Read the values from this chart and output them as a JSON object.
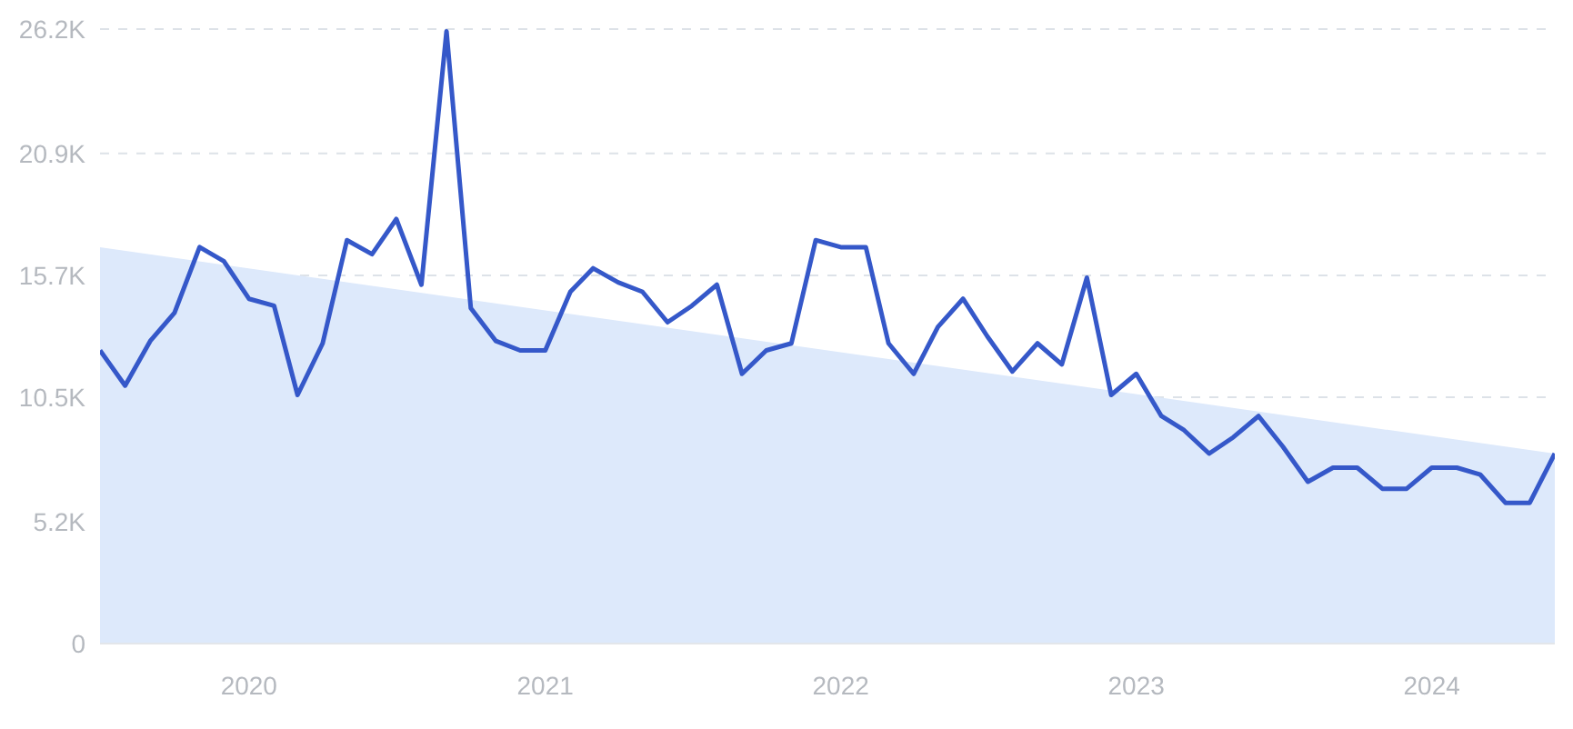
{
  "chart_data": {
    "type": "line",
    "xlim": [
      "2019-07",
      "2024-06"
    ],
    "xticks": [
      "2020",
      "2021",
      "2022",
      "2023",
      "2024"
    ],
    "ylim": [
      0,
      26200
    ],
    "yticks": [
      {
        "value": 0,
        "label": "0"
      },
      {
        "value": 5200,
        "label": "5.2K"
      },
      {
        "value": 10500,
        "label": "10.5K"
      },
      {
        "value": 15700,
        "label": "15.7K"
      },
      {
        "value": 20900,
        "label": "20.9K"
      },
      {
        "value": 26200,
        "label": "26.2K"
      }
    ],
    "grid": "y",
    "line_style": "solid",
    "marker": "none",
    "series": [
      {
        "type": "area",
        "color": "#dde9fb",
        "x": [
          "2019-07",
          "2024-06"
        ],
        "values": [
          16900,
          8100
        ]
      },
      {
        "color": "#3558c9",
        "x": [
          "2019-07",
          "2019-08",
          "2019-09",
          "2019-10",
          "2019-11",
          "2019-12",
          "2020-01",
          "2020-02",
          "2020-03",
          "2020-04",
          "2020-05",
          "2020-06",
          "2020-07",
          "2020-08",
          "2020-09",
          "2020-10",
          "2020-11",
          "2020-12",
          "2021-01",
          "2021-02",
          "2021-03",
          "2021-04",
          "2021-05",
          "2021-06",
          "2021-07",
          "2021-08",
          "2021-09",
          "2021-10",
          "2021-11",
          "2021-12",
          "2022-01",
          "2022-02",
          "2022-03",
          "2022-04",
          "2022-05",
          "2022-06",
          "2022-07",
          "2022-08",
          "2022-09",
          "2022-10",
          "2022-11",
          "2022-12",
          "2023-01",
          "2023-02",
          "2023-03",
          "2023-04",
          "2023-05",
          "2023-06",
          "2023-07",
          "2023-08",
          "2023-09",
          "2023-10",
          "2023-11",
          "2023-12",
          "2024-01",
          "2024-02",
          "2024-03",
          "2024-04",
          "2024-05",
          "2024-06"
        ],
        "values": [
          12500,
          11000,
          12900,
          14100,
          16900,
          16300,
          14700,
          14400,
          10600,
          12800,
          17200,
          16600,
          18100,
          15300,
          26100,
          14300,
          12900,
          12500,
          12500,
          15000,
          16000,
          15400,
          15000,
          13700,
          14400,
          15300,
          11500,
          12500,
          12800,
          17200,
          16900,
          16900,
          12800,
          11500,
          13500,
          14700,
          13100,
          11600,
          12800,
          11900,
          15600,
          10600,
          11500,
          9700,
          9100,
          8100,
          8800,
          9700,
          8400,
          6900,
          7500,
          7500,
          6600,
          6600,
          7500,
          7500,
          7200,
          6000,
          6000,
          8100
        ]
      }
    ]
  }
}
